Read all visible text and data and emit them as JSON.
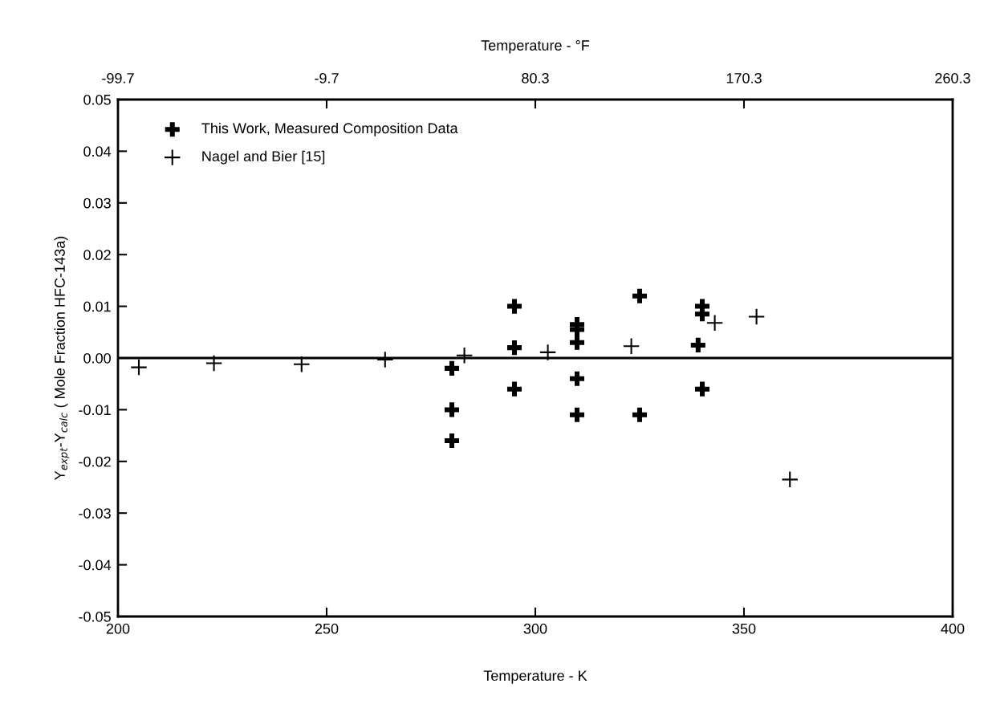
{
  "chart_data": {
    "type": "scatter",
    "xlabel": "Temperature - K",
    "x2label": "Temperature - °F",
    "ylabel": "Y$_{expt}$-Y$_{calc}$ ( Mole Fraction HFC-143a)",
    "series": [
      {
        "name": "This Work, Measured Composition Data",
        "color": "#000000",
        "marker": "cross",
        "x": [
          280,
          280,
          280,
          295,
          295,
          295,
          310,
          310,
          310,
          310,
          310,
          325,
          325,
          340,
          340,
          339,
          340
        ],
        "values": [
          -0.002,
          -0.01,
          -0.016,
          0.01,
          0.002,
          -0.006,
          0.0065,
          0.0055,
          0.003,
          -0.004,
          -0.011,
          0.012,
          -0.011,
          0.01,
          0.0085,
          0.0025,
          -0.006
        ]
      },
      {
        "name": "Nagel and Bier [15]",
        "color": "#000000",
        "marker": "plus",
        "x": [
          205,
          223,
          244,
          264,
          283,
          303,
          323,
          343,
          353,
          361
        ],
        "values": [
          -0.0018,
          -0.001,
          -0.0012,
          -0.0003,
          0.0005,
          0.0011,
          0.0023,
          0.0068,
          0.008,
          -0.0235
        ]
      }
    ],
    "xlim": [
      200,
      400
    ],
    "xticks": [
      200,
      250,
      300,
      350,
      400
    ],
    "x2lim": [
      -99.7,
      260.3
    ],
    "x2ticks": [
      {
        "value": -99.7,
        "label": "-99.7"
      },
      {
        "value": -9.7,
        "label": "-9.7"
      },
      80.3,
      170.3,
      260.3
    ],
    "ylim": [
      -0.05,
      0.05
    ],
    "yticks": [
      {
        "value": -0.05,
        "label": "-0.05"
      },
      {
        "value": -0.04,
        "label": "-0.04"
      },
      {
        "value": -0.03,
        "label": "-0.03"
      },
      {
        "value": -0.02,
        "label": "-0.02"
      },
      {
        "value": -0.01,
        "label": "-0.01"
      },
      {
        "value": 0,
        "label": "0.00"
      },
      {
        "value": 0.01,
        "label": "0.01"
      },
      {
        "value": 0.02,
        "label": "0.02"
      },
      {
        "value": 0.03,
        "label": "0.03"
      },
      {
        "value": 0.04,
        "label": "0.04"
      },
      {
        "value": 0.05,
        "label": "0.05"
      }
    ],
    "ref_lines": [
      {
        "axis": "y",
        "value": 0,
        "color": "#000000",
        "line_style": "solid"
      }
    ],
    "grid": false,
    "legend": "top left"
  }
}
